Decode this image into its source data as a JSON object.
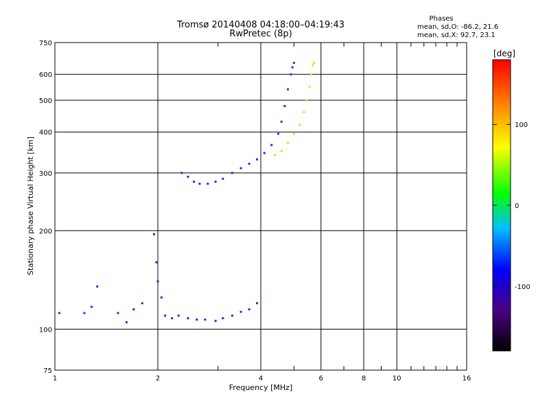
{
  "chart_data": {
    "type": "scatter",
    "title": "Tromsø 20140408 04:18:00–04:19:43",
    "subtitle": "RwPretec (8p)",
    "xlabel": "Frequency [MHz]",
    "ylabel": "Stationary phase Virtual Height [km]",
    "x_scale": "log",
    "y_scale": "log",
    "xlim": [
      1,
      16
    ],
    "ylim": [
      75,
      750
    ],
    "x_ticks": [
      1,
      2,
      4,
      6,
      8,
      10,
      16
    ],
    "x_minor_ticks": [
      3,
      5,
      7,
      9,
      11,
      12,
      13,
      14,
      15
    ],
    "y_ticks": [
      75,
      100,
      200,
      300,
      400,
      500,
      600,
      750
    ],
    "grid": true,
    "phases_box": {
      "title": "Phases",
      "line1": "mean, sd,O: -86.2, 21.6",
      "line2": "mean, sd,X:  92.7, 23.1"
    },
    "colorbar": {
      "label": "[deg]",
      "range": [
        -180,
        180
      ],
      "ticks": [
        100,
        0,
        -100
      ],
      "colormap": "rainbow"
    },
    "series": [
      {
        "points": [
          [
            1.03,
            112
          ],
          [
            1.22,
            112
          ],
          [
            1.28,
            117
          ],
          [
            1.33,
            135
          ],
          [
            1.53,
            112
          ],
          [
            1.62,
            105
          ],
          [
            1.7,
            115
          ],
          [
            1.8,
            120
          ],
          [
            1.95,
            195
          ],
          [
            1.98,
            160
          ],
          [
            2.0,
            140
          ],
          [
            2.05,
            125
          ],
          [
            2.1,
            110
          ],
          [
            2.2,
            108
          ],
          [
            2.3,
            110
          ],
          [
            2.45,
            108
          ],
          [
            2.6,
            107
          ],
          [
            2.75,
            107
          ],
          [
            2.95,
            106
          ],
          [
            3.1,
            108
          ],
          [
            3.3,
            110
          ],
          [
            3.5,
            113
          ],
          [
            3.7,
            115
          ],
          [
            3.9,
            120
          ],
          [
            2.35,
            300
          ],
          [
            2.45,
            292
          ],
          [
            2.55,
            282
          ],
          [
            2.65,
            278
          ],
          [
            2.8,
            278
          ],
          [
            2.95,
            282
          ],
          [
            3.1,
            288
          ],
          [
            3.3,
            300
          ],
          [
            3.5,
            310
          ],
          [
            3.7,
            320
          ],
          [
            3.9,
            330
          ],
          [
            4.1,
            345
          ],
          [
            4.3,
            365
          ],
          [
            4.5,
            395
          ],
          [
            4.6,
            430
          ],
          [
            4.7,
            480
          ],
          [
            4.8,
            540
          ],
          [
            4.9,
            600
          ],
          [
            4.95,
            630
          ],
          [
            5.0,
            650
          ]
        ]
      },
      {
        "points": [
          [
            4.4,
            340
          ],
          [
            4.6,
            350
          ],
          [
            4.8,
            370
          ],
          [
            5.0,
            395
          ],
          [
            5.2,
            420
          ],
          [
            5.35,
            460
          ],
          [
            5.45,
            500
          ],
          [
            5.55,
            550
          ],
          [
            5.62,
            600
          ],
          [
            5.68,
            640
          ],
          [
            5.72,
            650
          ]
        ]
      }
    ]
  }
}
